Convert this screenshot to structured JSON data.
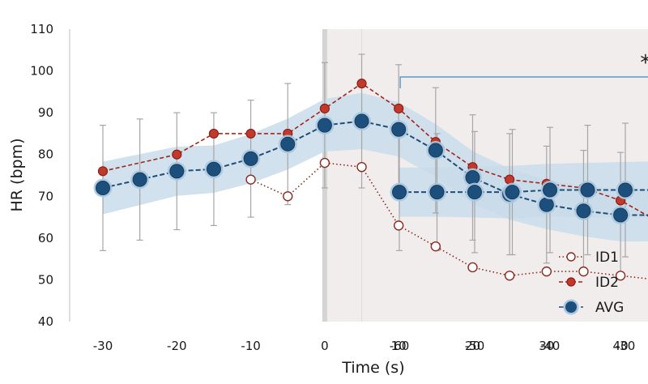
{
  "chart_data": {
    "type": "line",
    "title": "",
    "xlabel": "Time (s)",
    "ylabel": "HR (bpm)",
    "ylim": [
      40,
      110
    ],
    "yticks": [
      40,
      50,
      60,
      70,
      80,
      90,
      100,
      110
    ],
    "grid": false,
    "legend_position": "bottom-right",
    "segments": [
      {
        "id": "left",
        "x": [
          -30,
          -25,
          -20,
          -15,
          -10,
          -5,
          0,
          5,
          10,
          15,
          20,
          25,
          30,
          35,
          40,
          45,
          50,
          55,
          60
        ],
        "xticks": [
          -30,
          -20,
          -10,
          0,
          10,
          20,
          30,
          40,
          50,
          60
        ],
        "series": [
          {
            "name": "ID1",
            "values": [
              null,
              null,
              null,
              null,
              74,
              70,
              78,
              77,
              63,
              58,
              53,
              51,
              52,
              52,
              51,
              50,
              48,
              46,
              43
            ]
          },
          {
            "name": "ID2",
            "values": [
              76,
              null,
              80,
              85,
              85,
              85,
              91,
              97,
              91,
              83,
              77,
              74,
              73,
              72,
              69,
              64,
              61,
              59,
              55
            ]
          },
          {
            "name": "AVG",
            "values": [
              72,
              74,
              76,
              76.5,
              79,
              82.5,
              87,
              88,
              86,
              81,
              74.5,
              70.5,
              68,
              66.5,
              65.5,
              65.5,
              65.5,
              65.5,
              66.5
            ]
          },
          {
            "name": "AVG_sd",
            "values": [
              15,
              14.5,
              14,
              13.5,
              14,
              14.5,
              15,
              16,
              15.5,
              15,
              15,
              14.5,
              14,
              14.5,
              15,
              15,
              15,
              15,
              15
            ]
          }
        ]
      },
      {
        "id": "right",
        "x": [
          -60,
          -55,
          -50,
          -45,
          -40,
          -35,
          -30,
          -25,
          -20,
          -15,
          -10,
          -5,
          0,
          5,
          10,
          15,
          20,
          25,
          30
        ],
        "xticks": [
          -60,
          -50,
          -40,
          -30,
          -20,
          -10,
          0,
          10,
          20,
          30
        ],
        "series": [
          {
            "name": "AVG",
            "values": [
              71,
              71,
              71,
              71,
              71.5,
              71.5,
              71.5,
              71.5,
              71.5,
              71.5,
              71.5,
              71,
              70,
              75,
              85.5,
              91.5,
              95.5,
              97,
              94
            ]
          },
          {
            "name": "AVG_sd",
            "values": [
              14,
              14,
              14.5,
              15,
              15,
              15.5,
              16,
              16.5,
              17,
              17,
              17,
              17,
              17,
              17,
              18.5,
              16,
              18.5,
              15.5,
              16
            ]
          }
        ]
      }
    ],
    "legend": [
      "ID1",
      "ID2",
      "AVG"
    ],
    "annotations": [
      {
        "text": "*",
        "label": "significance-bracket-long"
      },
      {
        "text": "*",
        "label": "significance-bracket-short"
      }
    ],
    "colors": {
      "id1": "#8b2a1f",
      "id2": "#a3261c",
      "avg": "#1f4e78",
      "band": "#c9dcea",
      "errorbar": "#a6a6a6",
      "shade": "#f1eded",
      "bracket": "#5a9bc8"
    }
  }
}
